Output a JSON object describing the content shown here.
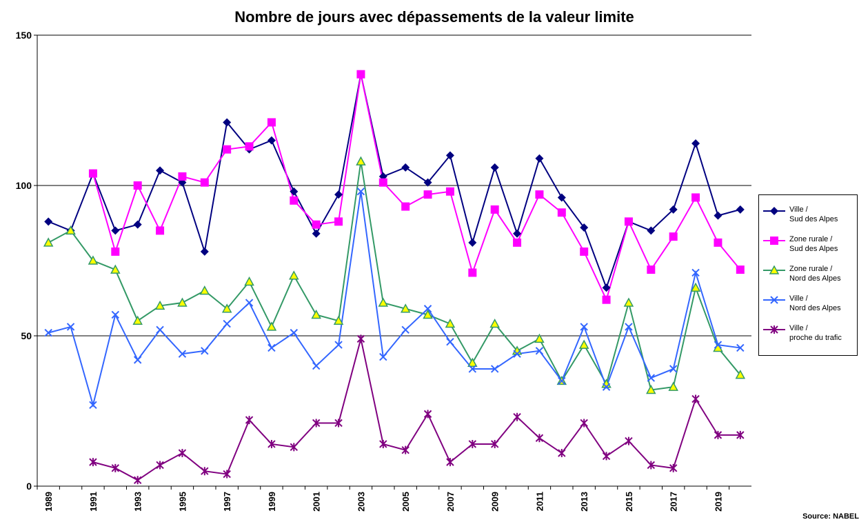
{
  "chart_data": {
    "type": "line",
    "title": "Nombre de jours avec dépassements de la valeur limite",
    "source": "Source: NABEL",
    "categories": [
      "1989",
      null,
      "1991",
      null,
      "1993",
      null,
      "1995",
      null,
      "1997",
      null,
      "1999",
      null,
      "2001",
      null,
      "2003",
      null,
      "2005",
      null,
      "2007",
      null,
      "2009",
      null,
      "2011",
      null,
      "2013",
      null,
      "2015",
      null,
      "2017",
      null,
      "2019",
      null
    ],
    "ylim": [
      0,
      150
    ],
    "yticks": [
      0,
      50,
      100,
      150
    ],
    "grid": true,
    "legend": "right",
    "series": [
      {
        "name": "Ville /\nSud des Alpes",
        "color": "#000080",
        "marker": "diamond",
        "values": [
          88,
          85,
          104,
          85,
          87,
          105,
          101,
          78,
          121,
          112,
          115,
          98,
          84,
          97,
          137,
          103,
          106,
          101,
          110,
          81,
          106,
          84,
          109,
          96,
          86,
          66,
          88,
          85,
          92,
          114,
          90,
          92
        ]
      },
      {
        "name": "Zone rurale /\nSud des Alpes",
        "color": "#ff00ff",
        "marker": "square",
        "values": [
          null,
          null,
          104,
          78,
          100,
          85,
          103,
          101,
          112,
          113,
          121,
          95,
          87,
          88,
          137,
          101,
          93,
          97,
          98,
          71,
          92,
          81,
          97,
          91,
          78,
          62,
          88,
          72,
          83,
          96,
          81,
          72
        ]
      },
      {
        "name": "Zone rurale /\nNord des Alpes",
        "color": "#339966",
        "marker": "triangle",
        "values": [
          81,
          85,
          75,
          72,
          55,
          60,
          61,
          65,
          59,
          68,
          53,
          70,
          57,
          55,
          108,
          61,
          59,
          57,
          54,
          41,
          54,
          45,
          49,
          35,
          47,
          34,
          61,
          32,
          33,
          66,
          46,
          37
        ]
      },
      {
        "name": "Ville /\nNord des Alpes",
        "color": "#3366ff",
        "marker": "x",
        "values": [
          51,
          53,
          27,
          57,
          42,
          52,
          44,
          45,
          54,
          61,
          46,
          51,
          40,
          47,
          98,
          43,
          52,
          59,
          48,
          39,
          39,
          44,
          45,
          35,
          53,
          33,
          53,
          36,
          39,
          71,
          47,
          46
        ]
      },
      {
        "name": "Ville /\nproche du trafic",
        "color": "#800080",
        "marker": "star",
        "values": [
          null,
          null,
          8,
          6,
          2,
          7,
          11,
          5,
          4,
          22,
          14,
          13,
          21,
          21,
          49,
          14,
          12,
          24,
          8,
          14,
          14,
          23,
          16,
          11,
          21,
          10,
          15,
          7,
          6,
          29,
          17,
          17
        ]
      }
    ]
  }
}
